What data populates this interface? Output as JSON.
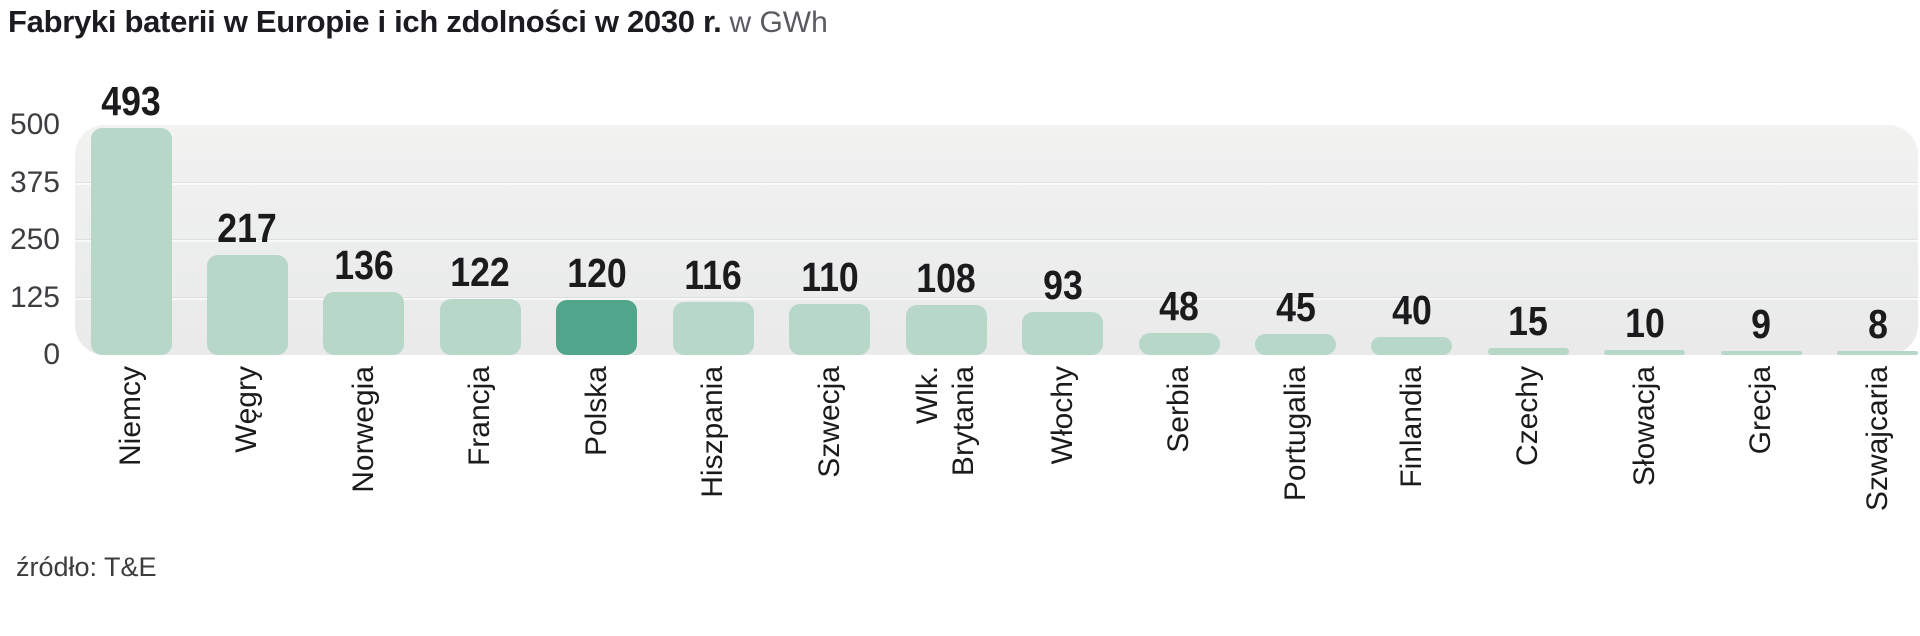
{
  "title": {
    "bold": "Fabryki baterii w Europie i ich zdolności w 2030 r.",
    "unit": "w GWh"
  },
  "source": "źródło: T&E",
  "colors": {
    "bar": "#b7d7c9",
    "bar_highlight": "#51a58b",
    "title": "#1b1b20",
    "unit": "#5a5b60",
    "tick": "#3e3e42",
    "value": "#1b1b1e",
    "label": "#1b1b1e",
    "source": "#3c3c3f",
    "plot_bg": "#ededec"
  },
  "chart_data": {
    "type": "bar",
    "title": "Fabryki baterii w Europie i ich zdolności w 2030 r.",
    "subtitle": "w GWh",
    "ylabel": "GWh",
    "xlabel": "",
    "categories": [
      "Niemcy",
      "Węgry",
      "Norwegia",
      "Francja",
      "Polska",
      "Hiszpania",
      "Szwecja",
      "Wlk.\nBrytania",
      "Włochy",
      "Serbia",
      "Portugalia",
      "Finlandia",
      "Czechy",
      "Słowacja",
      "Grecja",
      "Szwajcaria"
    ],
    "values": [
      493,
      217,
      136,
      122,
      120,
      116,
      110,
      108,
      93,
      48,
      45,
      40,
      15,
      10,
      9,
      8
    ],
    "highlight_category": "Polska",
    "highlight_index": 4,
    "yticks": [
      500,
      375,
      250,
      125,
      0
    ],
    "ylim": [
      0,
      500
    ],
    "grid": true,
    "legend_position": "none",
    "source": "T&E"
  }
}
